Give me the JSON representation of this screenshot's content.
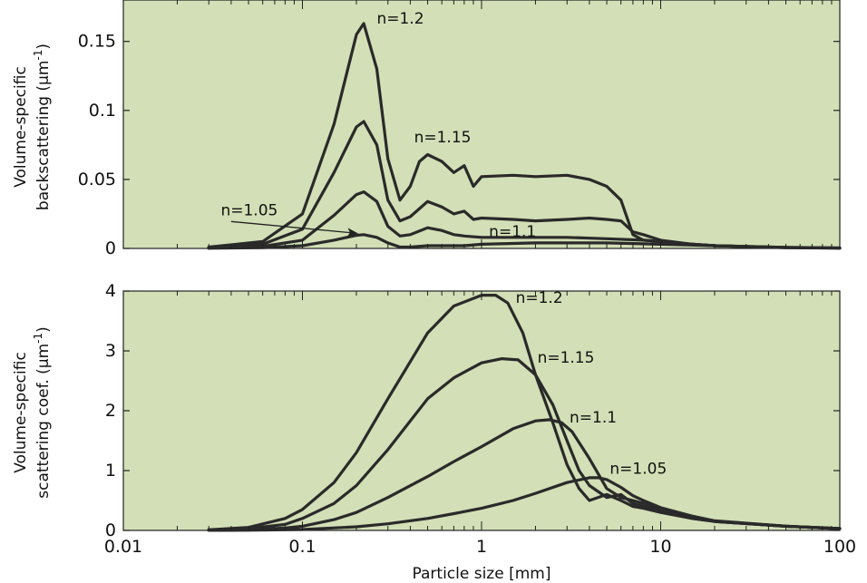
{
  "chart_data": [
    {
      "type": "line",
      "xscale": "log",
      "xlim": [
        0.01,
        100
      ],
      "ylim": [
        0,
        0.18
      ],
      "yticks": [
        0,
        0.05,
        0.1,
        0.15
      ],
      "ytick_labels": [
        "0",
        "0.05",
        "0.1",
        "0.15"
      ],
      "ylabel_line1": "Volume-specific",
      "ylabel_line2": "backscattering (µm",
      "ylabel_sup": "-1",
      "ylabel_close": ")",
      "background": "#d3dfb6",
      "series": [
        {
          "name": "n=1.2",
          "x": [
            0.03,
            0.06,
            0.1,
            0.15,
            0.2,
            0.22,
            0.26,
            0.3,
            0.35,
            0.4,
            0.45,
            0.5,
            0.6,
            0.7,
            0.8,
            0.9,
            1.0,
            1.5,
            2,
            3,
            4,
            5,
            6,
            7,
            8,
            10,
            15,
            20,
            50,
            100
          ],
          "y": [
            0.001,
            0.005,
            0.025,
            0.09,
            0.155,
            0.163,
            0.13,
            0.065,
            0.035,
            0.045,
            0.063,
            0.068,
            0.063,
            0.055,
            0.06,
            0.045,
            0.052,
            0.053,
            0.052,
            0.053,
            0.05,
            0.045,
            0.035,
            0.01,
            0.006,
            0.005,
            0.003,
            0.002,
            0.0008,
            0.0003
          ]
        },
        {
          "name": "",
          "x": [
            0.03,
            0.06,
            0.1,
            0.15,
            0.2,
            0.22,
            0.26,
            0.3,
            0.35,
            0.4,
            0.5,
            0.6,
            0.7,
            0.8,
            0.9,
            1.0,
            1.5,
            2,
            3,
            4,
            5,
            6,
            7,
            8,
            10,
            15,
            20,
            50,
            100
          ],
          "y": [
            0.0005,
            0.003,
            0.014,
            0.055,
            0.088,
            0.092,
            0.075,
            0.035,
            0.02,
            0.023,
            0.034,
            0.03,
            0.025,
            0.027,
            0.021,
            0.022,
            0.021,
            0.02,
            0.021,
            0.022,
            0.021,
            0.02,
            0.012,
            0.01,
            0.006,
            0.003,
            0.002,
            0.0008,
            0.0003
          ]
        },
        {
          "name": "",
          "x": [
            0.03,
            0.06,
            0.1,
            0.15,
            0.2,
            0.22,
            0.26,
            0.3,
            0.35,
            0.4,
            0.5,
            0.6,
            0.7,
            0.8,
            1.0,
            1.5,
            2,
            3,
            5,
            8,
            10,
            15,
            20,
            50,
            100
          ],
          "y": [
            0.0003,
            0.0015,
            0.006,
            0.024,
            0.039,
            0.041,
            0.034,
            0.016,
            0.009,
            0.01,
            0.015,
            0.013,
            0.01,
            0.009,
            0.008,
            0.008,
            0.008,
            0.008,
            0.007,
            0.006,
            0.005,
            0.003,
            0.002,
            0.0006,
            0.0002
          ]
        },
        {
          "name": "n=1.05",
          "x": [
            0.03,
            0.06,
            0.1,
            0.15,
            0.2,
            0.22,
            0.26,
            0.3,
            0.35,
            0.4,
            0.5,
            0.6,
            0.8,
            1.0,
            2,
            5,
            10,
            20,
            50,
            100
          ],
          "y": [
            0.0001,
            0.0005,
            0.002,
            0.006,
            0.0095,
            0.01,
            0.008,
            0.004,
            0.001,
            0.001,
            0.002,
            0.002,
            0.002,
            0.003,
            0.004,
            0.004,
            0.003,
            0.002,
            0.0005,
            0.0002
          ]
        }
      ],
      "labels": [
        {
          "text": "n=1.2",
          "x": 0.26,
          "y": 0.163
        },
        {
          "text": "n=1.15",
          "x": 0.42,
          "y": 0.077
        },
        {
          "text": "n=1.1",
          "x": 1.1,
          "y": 0.0085
        },
        {
          "text": "n=1.05",
          "x": 0.035,
          "y": 0.024
        }
      ],
      "arrow": {
        "from": [
          0.04,
          0.0195
        ],
        "to": [
          0.2,
          0.011
        ]
      }
    },
    {
      "type": "line",
      "xscale": "log",
      "xlim": [
        0.01,
        100
      ],
      "ylim": [
        0,
        4
      ],
      "yticks": [
        0,
        1,
        2,
        3,
        4
      ],
      "ytick_labels": [
        "0",
        "1",
        "2",
        "3",
        "4"
      ],
      "xticks": [
        0.01,
        0.1,
        1,
        10,
        100
      ],
      "xtick_labels": [
        "0.01",
        "0.1",
        "1",
        "10",
        "100"
      ],
      "xlabel": "Particle size [mm]",
      "ylabel_line1": "Volume-specific",
      "ylabel_line2": "scattering coef. (µm",
      "ylabel_sup": "-1",
      "ylabel_close": ")",
      "background": "#d3dfb6",
      "series": [
        {
          "name": "n=1.2",
          "x": [
            0.03,
            0.05,
            0.08,
            0.1,
            0.15,
            0.2,
            0.3,
            0.5,
            0.7,
            1.0,
            1.2,
            1.4,
            1.7,
            2,
            2.5,
            3,
            3.5,
            4,
            5,
            6,
            7,
            8,
            10,
            15,
            20,
            50,
            100
          ],
          "y": [
            0.01,
            0.05,
            0.2,
            0.35,
            0.8,
            1.3,
            2.2,
            3.3,
            3.75,
            3.93,
            3.93,
            3.8,
            3.3,
            2.6,
            1.8,
            1.1,
            0.7,
            0.5,
            0.6,
            0.5,
            0.4,
            0.37,
            0.3,
            0.2,
            0.15,
            0.07,
            0.03
          ]
        },
        {
          "name": "n=1.15",
          "x": [
            0.03,
            0.05,
            0.08,
            0.1,
            0.15,
            0.2,
            0.3,
            0.5,
            0.7,
            1.0,
            1.3,
            1.6,
            2,
            2.5,
            3,
            3.5,
            4,
            5,
            6,
            7,
            8,
            10,
            15,
            20,
            50,
            100
          ],
          "y": [
            0.01,
            0.03,
            0.1,
            0.2,
            0.45,
            0.75,
            1.35,
            2.2,
            2.55,
            2.8,
            2.87,
            2.85,
            2.6,
            2.1,
            1.5,
            1.0,
            0.75,
            0.55,
            0.6,
            0.45,
            0.4,
            0.32,
            0.2,
            0.15,
            0.07,
            0.03
          ]
        },
        {
          "name": "n=1.1",
          "x": [
            0.03,
            0.05,
            0.08,
            0.1,
            0.15,
            0.2,
            0.3,
            0.5,
            0.7,
            1.0,
            1.5,
            2,
            2.4,
            2.8,
            3.2,
            4,
            5,
            6,
            7,
            8,
            10,
            15,
            20,
            50,
            100
          ],
          "y": [
            0.003,
            0.01,
            0.04,
            0.07,
            0.18,
            0.3,
            0.55,
            0.9,
            1.15,
            1.4,
            1.7,
            1.83,
            1.85,
            1.8,
            1.65,
            1.2,
            0.7,
            0.55,
            0.5,
            0.45,
            0.35,
            0.22,
            0.15,
            0.07,
            0.03
          ]
        },
        {
          "name": "n=1.05",
          "x": [
            0.03,
            0.05,
            0.08,
            0.1,
            0.2,
            0.3,
            0.5,
            0.7,
            1.0,
            1.5,
            2,
            3,
            4,
            4.5,
            5,
            6,
            7,
            8,
            10,
            15,
            20,
            50,
            100
          ],
          "y": [
            0.001,
            0.003,
            0.01,
            0.015,
            0.06,
            0.11,
            0.2,
            0.28,
            0.37,
            0.5,
            0.62,
            0.8,
            0.88,
            0.88,
            0.85,
            0.72,
            0.58,
            0.5,
            0.38,
            0.24,
            0.16,
            0.07,
            0.03
          ]
        }
      ],
      "labels": [
        {
          "text": "n=1.2",
          "x": 1.55,
          "y": 3.8
        },
        {
          "text": "n=1.15",
          "x": 2.05,
          "y": 2.8
        },
        {
          "text": "n=1.1",
          "x": 3.1,
          "y": 1.8
        },
        {
          "text": "n=1.05",
          "x": 5.2,
          "y": 0.95
        }
      ]
    }
  ]
}
